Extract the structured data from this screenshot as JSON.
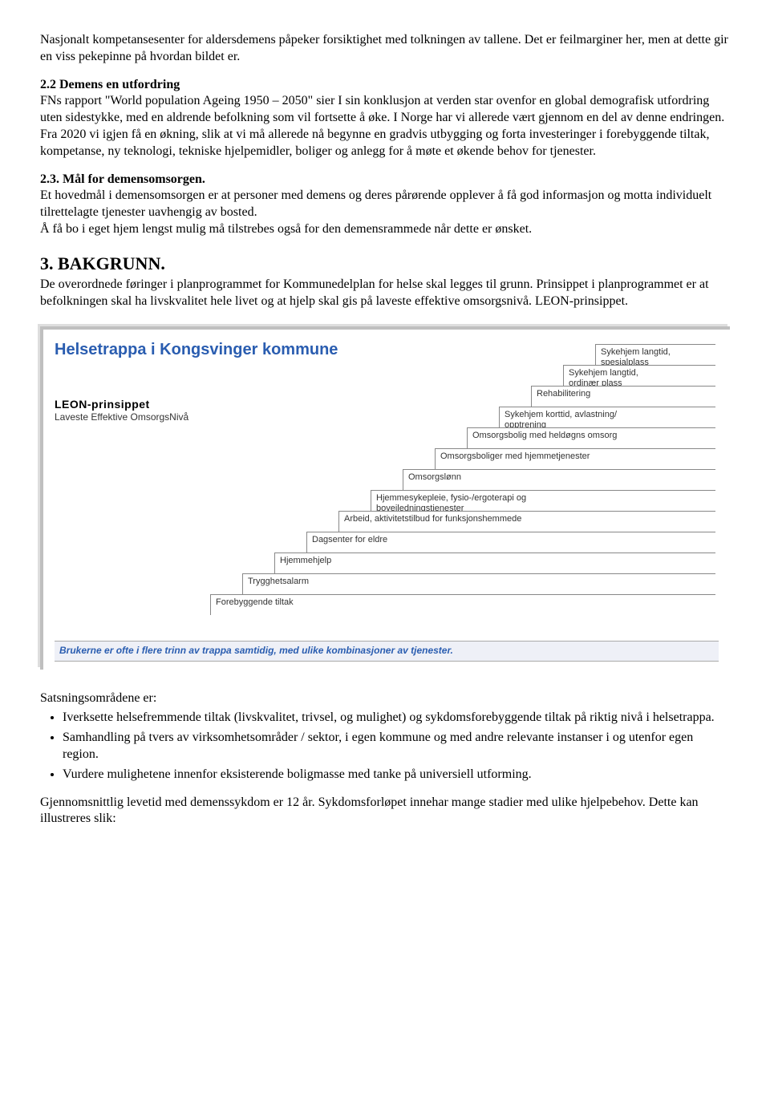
{
  "para_intro": "Nasjonalt kompetansesenter for aldersdemens påpeker forsiktighet med tolkningen av tallene. Det er feilmarginer her, men at dette gir en viss pekepinne på hvordan bildet er.",
  "s22_head": "2.2 Demens en utfordring",
  "s22_body": "FNs rapport \"World population Ageing 1950 – 2050\" sier I sin konklusjon at verden star ovenfor en global demografisk utfordring uten sidestykke, med en aldrende befolkning som vil fortsette å øke. I Norge har vi allerede vært gjennom en del av denne endringen. Fra 2020 vi igjen få en økning, slik at vi må allerede nå begynne en gradvis utbygging og forta investeringer i forebyggende tiltak, kompetanse, ny teknologi, tekniske hjelpemidler, boliger og anlegg for å møte et økende behov for tjenester.",
  "s23_head": "2.3. Mål for demensomsorgen.",
  "s23_body1": "Et hovedmål i demensomsorgen er at personer med demens og deres pårørende opplever å få god informasjon og motta individuelt tilrettelagte tjenester uavhengig av bosted.",
  "s23_body2": "Å få bo i eget hjem lengst mulig må tilstrebes også for den demensrammede når dette er ønsket.",
  "s3_title": "3.  BAKGRUNN.",
  "s3_body": "De overordnede føringer i planprogrammet for Kommunedelplan for helse skal legges til grunn. Prinsippet i planprogrammet er at befolkningen skal ha livskvalitet hele livet og at hjelp skal gis på laveste effektive omsorgsnivå. LEON-prinsippet.",
  "sats_head": "Satsningsområdene er:",
  "bullets": [
    "Iverksette helsefremmende tiltak (livskvalitet, trivsel, og mulighet) og sykdomsforebyggende tiltak på riktig nivå i helsetrappa.",
    "Samhandling på tvers av virksomhetsområder / sektor, i egen kommune og med andre relevante instanser i og utenfor egen region.",
    "Vurdere mulighetene innenfor eksisterende boligmasse med tanke på universiell utforming."
  ],
  "closing": "Gjennomsnittlig levetid med demenssykdom er 12 år. Sykdomsforløpet innehar mange stadier med ulike hjelpebehov. Dette kan illustreres slik:",
  "diagram": {
    "title": "Helsetrappa i\nKongsvinger kommune",
    "leon_head": "LEON-prinsippet",
    "leon_sub": "Laveste Effektive OmsorgsNivå",
    "footer": "Brukerne er ofte i flere trinn av trappa samtidig, med ulike kombinasjoner av tjenester.",
    "step_h": 26,
    "step_indent": 40,
    "step_base_w": 150,
    "steps": [
      "Sykehjem langtid,\nspesialplass",
      "Sykehjem langtid,\nordinær plass",
      "Rehabilitering",
      "Sykehjem korttid, avlastning/\nopptrening",
      "Omsorgsbolig med heldøgns omsorg",
      "Omsorgsboliger med hjemmetjenester",
      "Omsorgslønn",
      "Hjemmesykepleie, fysio-/ergoterapi og\nboveiledningstjenester",
      "Arbeid, aktivitetstilbud for funksjonshemmede",
      "Dagsenter for eldre",
      "Hjemmehjelp",
      "Trygghetsalarm",
      "Forebyggende tiltak"
    ],
    "colors": {
      "title": "#2a5db0",
      "footer_bg": "#eef0f7",
      "step_border": "#888888",
      "frame_border": "#bfbfbf"
    }
  }
}
